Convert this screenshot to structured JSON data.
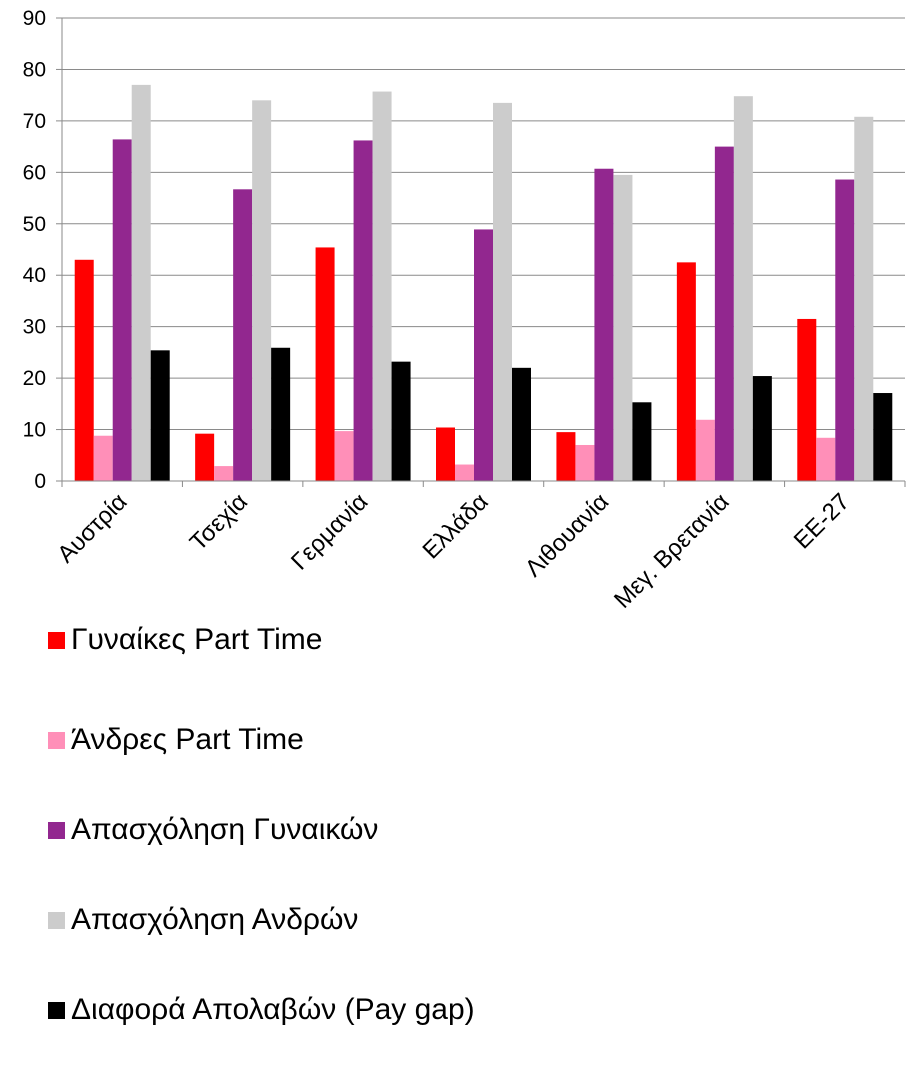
{
  "chart_data": {
    "type": "bar",
    "title": "",
    "xlabel": "",
    "ylabel": "",
    "ylim": [
      0,
      90
    ],
    "yticks": [
      0,
      10,
      20,
      30,
      40,
      50,
      60,
      70,
      80,
      90
    ],
    "grid": true,
    "legend_position": "bottom-left",
    "categories": [
      "Αυστρία",
      "Τσεχία",
      "Γερμανία",
      "Ελλάδα",
      "Λιθουανία",
      "Μεγ. Βρετανία",
      "ΕΕ-27"
    ],
    "series": [
      {
        "name": "Γυναίκες Part Time",
        "color": "#ff0000",
        "values": [
          43,
          9.2,
          45.4,
          10.4,
          9.5,
          42.5,
          31.5
        ]
      },
      {
        "name": "Άνδρες Part Time",
        "color": "#ff8fb8",
        "values": [
          8.8,
          2.9,
          9.7,
          3.2,
          7,
          11.9,
          8.4
        ]
      },
      {
        "name": "Απασχόληση Γυναικών",
        "color": "#92278f",
        "values": [
          66.4,
          56.7,
          66.2,
          48.9,
          60.7,
          65,
          58.6
        ]
      },
      {
        "name": "Απασχόληση Ανδρών",
        "color": "#cccccc",
        "values": [
          77,
          74,
          75.7,
          73.5,
          59.5,
          74.8,
          70.8
        ]
      },
      {
        "name": "Διαφορά Απολαβών (Pay gap)",
        "color": "#000000",
        "values": [
          25.4,
          25.9,
          23.2,
          22,
          15.3,
          20.4,
          17.1
        ]
      }
    ]
  }
}
